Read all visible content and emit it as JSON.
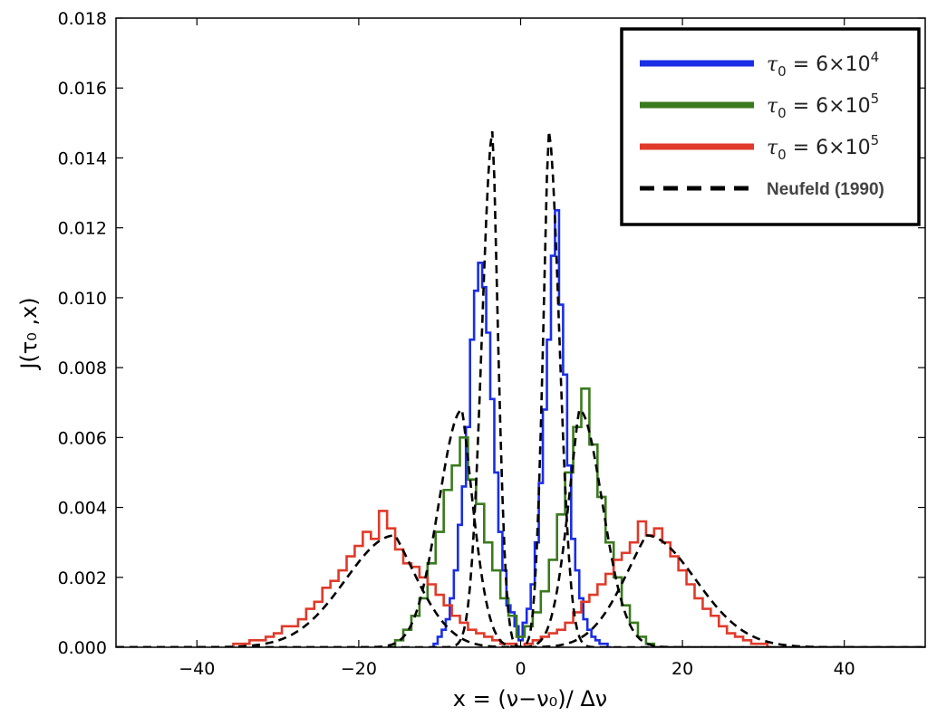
{
  "chart_data": {
    "type": "line",
    "title": "",
    "xlabel": "x = (ν−ν₀)/ Δν",
    "ylabel": "J(τ₀ ,x)",
    "xlim": [
      -50,
      50
    ],
    "ylim": [
      0,
      0.018
    ],
    "x_ticks": [
      -40,
      -20,
      0,
      20,
      40
    ],
    "x_tick_labels": [
      "−40",
      "−20",
      "0",
      "20",
      "40"
    ],
    "y_ticks": [
      0.0,
      0.002,
      0.004,
      0.006,
      0.008,
      0.01,
      0.012,
      0.014,
      0.016,
      0.018
    ],
    "y_tick_labels": [
      "0.000",
      "0.002",
      "0.004",
      "0.006",
      "0.008",
      "0.010",
      "0.012",
      "0.014",
      "0.016",
      "0.018"
    ],
    "grid": false,
    "legend_position": "top-right",
    "legend": [
      {
        "prefix": "τ",
        "sub": "0",
        "text": " = 6×10",
        "sup": "4",
        "color": "#1a2ee6",
        "style": "solid"
      },
      {
        "prefix": "τ",
        "sub": "0",
        "text": " = 6×10",
        "sup": "5",
        "color": "#3a7a1e",
        "style": "solid"
      },
      {
        "prefix": "τ",
        "sub": "0",
        "text": " = 6×10",
        "sup": "5",
        "color": "#e03a2a",
        "style": "solid"
      },
      {
        "prefix": "",
        "sub": "",
        "text": "Neufeld (1990)",
        "sup": "",
        "color": "#000000",
        "style": "dashed"
      }
    ],
    "series": [
      {
        "name": "tau0 = 6x10^4 (histogram)",
        "color": "#1a2ee6",
        "kind": "step",
        "x": [
          -11,
          -10.5,
          -10,
          -9.5,
          -9,
          -8.5,
          -8,
          -7.5,
          -7,
          -6.5,
          -6,
          -5.5,
          -5,
          -4.5,
          -4,
          -3.5,
          -3,
          -2.5,
          -2,
          -1.5,
          -1,
          -0.5,
          0,
          0.5,
          1,
          1.5,
          2,
          2.5,
          3,
          3.5,
          4,
          4.5,
          5,
          5.5,
          6,
          6.5,
          7,
          7.5,
          8,
          8.5,
          9,
          9.5,
          10,
          10.5,
          11
        ],
        "y": [
          0,
          0.0001,
          0.0003,
          0.0005,
          0.0008,
          0.0014,
          0.0022,
          0.0035,
          0.0046,
          0.0063,
          0.0088,
          0.0102,
          0.011,
          0.0103,
          0.009,
          0.0071,
          0.005,
          0.0033,
          0.0022,
          0.0012,
          0.001,
          0.0006,
          0.0002,
          0.0007,
          0.0011,
          0.0018,
          0.003,
          0.0047,
          0.0068,
          0.0088,
          0.0112,
          0.0125,
          0.0098,
          0.0078,
          0.0052,
          0.0031,
          0.0022,
          0.0014,
          0.0008,
          0.0005,
          0.0003,
          0.0002,
          0.0001,
          0.0001,
          0
        ]
      },
      {
        "name": "tau0 = 6x10^5 (histogram)",
        "color": "#3a7a1e",
        "kind": "step",
        "x": [
          -16,
          -15,
          -14,
          -13,
          -12,
          -11,
          -10,
          -9,
          -8,
          -7,
          -6,
          -5,
          -4,
          -3,
          -2,
          -1,
          0,
          1,
          2,
          3,
          4,
          5,
          6,
          7,
          8,
          9,
          10,
          11,
          12,
          13,
          14,
          15,
          16,
          17
        ],
        "y": [
          0,
          0.0002,
          0.0005,
          0.0009,
          0.0014,
          0.0024,
          0.0033,
          0.0045,
          0.0052,
          0.006,
          0.0048,
          0.0041,
          0.003,
          0.0022,
          0.0014,
          0.0009,
          0.0003,
          0.0006,
          0.001,
          0.0016,
          0.0025,
          0.0038,
          0.005,
          0.0063,
          0.0074,
          0.0058,
          0.0043,
          0.003,
          0.002,
          0.0012,
          0.0007,
          0.0003,
          0.0001,
          0
        ]
      },
      {
        "name": "tau0 = 6x10^5 (histogram, red)",
        "color": "#e03a2a",
        "kind": "step",
        "x": [
          -36,
          -35,
          -34,
          -33,
          -32,
          -31,
          -30,
          -29,
          -28,
          -27,
          -26,
          -25,
          -24,
          -23,
          -22,
          -21,
          -20,
          -19,
          -18,
          -17,
          -16,
          -15,
          -14,
          -13,
          -12,
          -11,
          -10,
          -9,
          -8,
          -7,
          -6,
          -5,
          -4,
          -3,
          -2,
          -1,
          0,
          1,
          2,
          3,
          4,
          5,
          6,
          7,
          8,
          9,
          10,
          11,
          12,
          13,
          14,
          15,
          16,
          17,
          18,
          19,
          20,
          21,
          22,
          23,
          24,
          25,
          26,
          27,
          28,
          29,
          30,
          31
        ],
        "y": [
          0,
          0.0001,
          0.0001,
          0.0002,
          0.0002,
          0.0003,
          0.0004,
          0.0006,
          0.0006,
          0.0008,
          0.0011,
          0.0013,
          0.0017,
          0.0019,
          0.0022,
          0.0026,
          0.0029,
          0.0033,
          0.0031,
          0.0039,
          0.0034,
          0.0028,
          0.0024,
          0.0023,
          0.002,
          0.0018,
          0.0015,
          0.0012,
          0.0009,
          0.0007,
          0.0005,
          0.0004,
          0.0003,
          0.0002,
          0.0001,
          0.0001,
          0,
          0.0001,
          0.0002,
          0.0003,
          0.0004,
          0.0005,
          0.0007,
          0.001,
          0.0013,
          0.0015,
          0.0018,
          0.0021,
          0.0025,
          0.0027,
          0.003,
          0.0036,
          0.0032,
          0.0034,
          0.003,
          0.0026,
          0.0022,
          0.0018,
          0.0014,
          0.0011,
          0.0009,
          0.0006,
          0.0004,
          0.0003,
          0.0002,
          0.0001,
          0.0001,
          0
        ]
      },
      {
        "name": "Neufeld (1990) tau0 = 6x10^4",
        "color": "#000000",
        "kind": "dashed",
        "peak": 0.0148,
        "center": 3.4,
        "width": 1.85
      },
      {
        "name": "Neufeld (1990) tau0 = 6x10^5",
        "color": "#000000",
        "kind": "dashed",
        "peak": 0.0068,
        "center": 7.2,
        "width": 3.9
      },
      {
        "name": "Neufeld (1990) tau0 = 6x10^5 (red)",
        "color": "#000000",
        "kind": "dashed",
        "peak": 0.0032,
        "center": 15.5,
        "width": 8.2
      }
    ]
  }
}
